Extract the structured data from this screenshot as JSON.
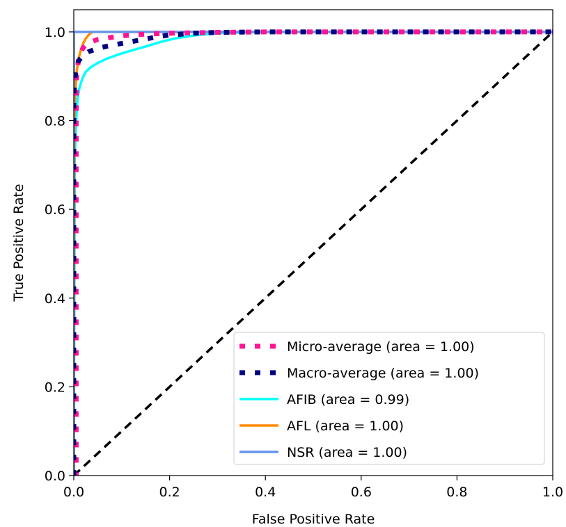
{
  "chart_data": {
    "type": "line",
    "title": "",
    "xlabel": "False Positive Rate",
    "ylabel": "True Positive Rate",
    "xlim": [
      0.0,
      1.0
    ],
    "ylim": [
      0.0,
      1.05
    ],
    "x_ticks": [
      0.0,
      0.2,
      0.4,
      0.6,
      0.8,
      1.0
    ],
    "y_ticks": [
      0.0,
      0.2,
      0.4,
      0.6,
      0.8,
      1.0
    ],
    "x_tick_labels": [
      "0.0",
      "0.2",
      "0.4",
      "0.6",
      "0.8",
      "1.0"
    ],
    "y_tick_labels": [
      "0.0",
      "0.2",
      "0.4",
      "0.6",
      "0.8",
      "1.0"
    ],
    "grid": false,
    "legend_position": "lower-right",
    "series": [
      {
        "name": "Micro-average (area = 1.00)",
        "color": "#ff1493",
        "style": "dotted",
        "x": [
          0.0,
          0.005,
          0.005,
          0.006,
          0.01,
          0.015,
          0.02,
          0.03,
          0.05,
          0.08,
          0.1,
          0.12,
          0.15,
          0.2,
          0.25,
          0.3,
          0.4,
          0.6,
          0.8,
          1.0
        ],
        "y": [
          0.0,
          0.0,
          0.8,
          0.9,
          0.94,
          0.955,
          0.965,
          0.975,
          0.983,
          0.988,
          0.991,
          0.993,
          0.995,
          0.997,
          0.998,
          0.999,
          1.0,
          1.0,
          1.0,
          1.0
        ]
      },
      {
        "name": "Macro-average (area = 1.00)",
        "color": "#000080",
        "style": "dotted",
        "x": [
          0.0,
          0.0,
          0.003,
          0.006,
          0.01,
          0.02,
          0.03,
          0.05,
          0.07,
          0.1,
          0.12,
          0.15,
          0.18,
          0.2,
          0.25,
          0.3,
          0.4,
          0.6,
          0.8,
          1.0
        ],
        "y": [
          0.0,
          0.86,
          0.9,
          0.92,
          0.935,
          0.948,
          0.955,
          0.963,
          0.968,
          0.974,
          0.978,
          0.984,
          0.99,
          0.993,
          0.997,
          0.999,
          1.0,
          1.0,
          1.0,
          1.0
        ]
      },
      {
        "name": "AFIB (area = 0.99)",
        "color": "#00ffff",
        "style": "solid",
        "x": [
          0.0,
          0.002,
          0.005,
          0.008,
          0.012,
          0.018,
          0.025,
          0.035,
          0.05,
          0.07,
          0.09,
          0.12,
          0.15,
          0.18,
          0.21,
          0.25,
          0.3,
          0.4,
          0.6,
          0.8,
          1.0
        ],
        "y": [
          0.0,
          0.72,
          0.8,
          0.85,
          0.875,
          0.895,
          0.91,
          0.92,
          0.93,
          0.94,
          0.948,
          0.958,
          0.967,
          0.977,
          0.985,
          0.992,
          0.997,
          1.0,
          1.0,
          1.0,
          1.0
        ]
      },
      {
        "name": "AFL (area = 1.00)",
        "color": "#ff8c00",
        "style": "solid",
        "x": [
          0.0,
          0.001,
          0.003,
          0.006,
          0.01,
          0.015,
          0.02,
          0.025,
          0.03,
          0.035,
          0.04,
          0.05,
          0.1,
          0.2,
          0.4,
          0.6,
          0.8,
          1.0
        ],
        "y": [
          0.0,
          0.78,
          0.86,
          0.91,
          0.94,
          0.96,
          0.975,
          0.985,
          0.992,
          0.997,
          1.0,
          1.0,
          1.0,
          1.0,
          1.0,
          1.0,
          1.0,
          1.0
        ]
      },
      {
        "name": "NSR (area = 1.00)",
        "color": "#6495ed",
        "style": "solid",
        "x": [
          0.0,
          0.0,
          0.2,
          0.4,
          0.6,
          0.8,
          1.0
        ],
        "y": [
          0.0,
          1.0,
          1.0,
          1.0,
          1.0,
          1.0,
          1.0
        ]
      }
    ],
    "reference_line": {
      "color": "#000000",
      "style": "dashed",
      "x": [
        0.0,
        1.0
      ],
      "y": [
        0.0,
        1.0
      ]
    }
  }
}
